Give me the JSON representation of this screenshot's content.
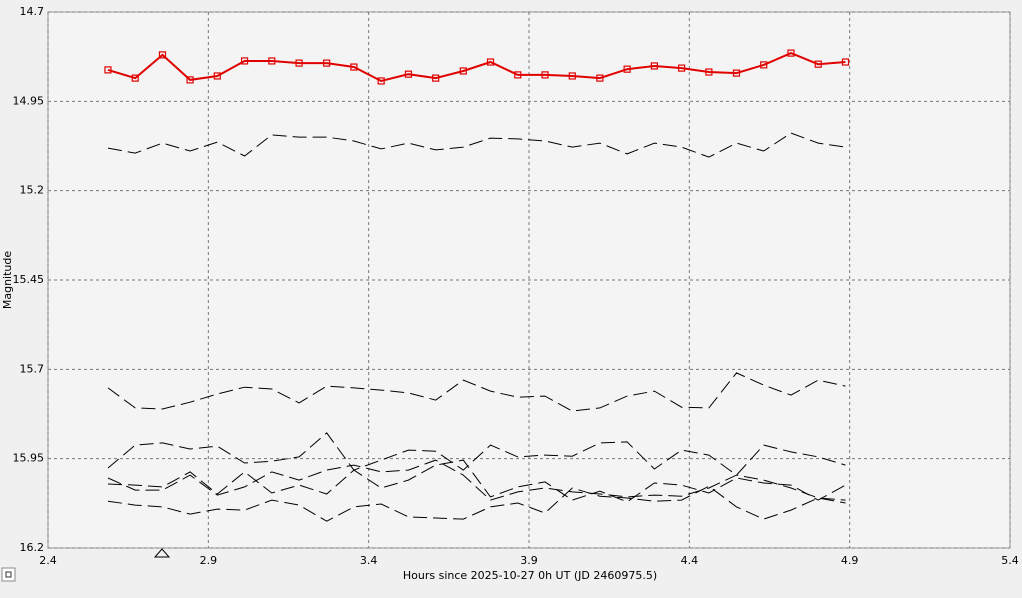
{
  "chart_data": {
    "type": "line",
    "x_label": "Hours since 2025-10-27 0h UT (JD 2460975.5)",
    "y_label": "Magnitude",
    "xlim": [
      2.4,
      5.4
    ],
    "xticks": [
      2.4,
      2.9,
      3.4,
      3.9,
      4.4,
      4.9,
      5.4
    ],
    "ylim": [
      16.2,
      14.7
    ],
    "yticks": [
      14.7,
      14.95,
      15.2,
      15.45,
      15.7,
      15.95,
      16.2
    ],
    "grid": true,
    "x": [
      2.587,
      2.672,
      2.757,
      2.843,
      2.928,
      3.013,
      3.098,
      3.183,
      3.269,
      3.354,
      3.439,
      3.524,
      3.609,
      3.695,
      3.78,
      3.865,
      3.95,
      4.035,
      4.121,
      4.206,
      4.291,
      4.376,
      4.461,
      4.547,
      4.632,
      4.717,
      4.802,
      4.887
    ],
    "series": [
      {
        "color": "#e00000",
        "markers": true,
        "dashed": false,
        "values": [
          14.862,
          14.885,
          14.82,
          14.89,
          14.879,
          14.837,
          14.837,
          14.843,
          14.843,
          14.854,
          14.893,
          14.874,
          14.885,
          14.865,
          14.84,
          14.876,
          14.876,
          14.879,
          14.885,
          14.86,
          14.851,
          14.857,
          14.868,
          14.871,
          14.848,
          14.815,
          14.846,
          14.84
        ]
      },
      {
        "color": "#000000",
        "markers": false,
        "dashed": true,
        "values": [
          15.081,
          15.095,
          15.067,
          15.089,
          15.064,
          15.103,
          15.044,
          15.05,
          15.05,
          15.061,
          15.083,
          15.067,
          15.086,
          15.078,
          15.053,
          15.055,
          15.061,
          15.078,
          15.067,
          15.097,
          15.067,
          15.078,
          15.106,
          15.067,
          15.089,
          15.039,
          15.067,
          15.078
        ]
      },
      {
        "color": "#000000",
        "markers": false,
        "dashed": true,
        "values": [
          15.752,
          15.808,
          15.811,
          15.792,
          15.769,
          15.75,
          15.755,
          15.794,
          15.747,
          15.752,
          15.758,
          15.766,
          15.786,
          15.73,
          15.761,
          15.778,
          15.775,
          15.817,
          15.808,
          15.775,
          15.761,
          15.806,
          15.808,
          15.71,
          15.744,
          15.772,
          15.73,
          15.747
        ]
      },
      {
        "color": "#000000",
        "markers": false,
        "dashed": true,
        "values": [
          15.976,
          15.912,
          15.906,
          15.923,
          15.915,
          15.962,
          15.957,
          15.945,
          15.878,
          15.982,
          15.954,
          15.926,
          15.929,
          15.982,
          15.912,
          15.945,
          15.94,
          15.943,
          15.906,
          15.903,
          15.979,
          15.926,
          15.94,
          15.996,
          15.912,
          15.931,
          15.945,
          15.968
        ]
      },
      {
        "color": "#000000",
        "markers": false,
        "dashed": true,
        "values": [
          16.021,
          16.024,
          16.029,
          15.987,
          16.049,
          15.987,
          16.046,
          16.024,
          16.049,
          15.982,
          16.032,
          16.01,
          15.968,
          15.954,
          16.057,
          16.029,
          16.015,
          16.066,
          16.041,
          16.071,
          16.018,
          16.024,
          16.046,
          16.004,
          16.018,
          16.024,
          16.066,
          16.024
        ]
      },
      {
        "color": "#000000",
        "markers": false,
        "dashed": true,
        "values": [
          16.069,
          16.08,
          16.085,
          16.105,
          16.091,
          16.094,
          16.066,
          16.08,
          16.125,
          16.085,
          16.077,
          16.113,
          16.116,
          16.119,
          16.085,
          16.074,
          16.102,
          16.032,
          16.055,
          16.06,
          16.069,
          16.066,
          16.027,
          16.085,
          16.119,
          16.094,
          16.06,
          16.074
        ]
      },
      {
        "color": "#000000",
        "markers": false,
        "dashed": true,
        "values": [
          16.004,
          16.038,
          16.038,
          15.996,
          16.052,
          16.029,
          15.987,
          16.01,
          15.982,
          15.968,
          15.987,
          15.982,
          15.954,
          15.996,
          16.066,
          16.043,
          16.032,
          16.043,
          16.049,
          16.057,
          16.052,
          16.055,
          16.032,
          15.996,
          16.01,
          16.032,
          16.06,
          16.066
        ]
      }
    ]
  }
}
